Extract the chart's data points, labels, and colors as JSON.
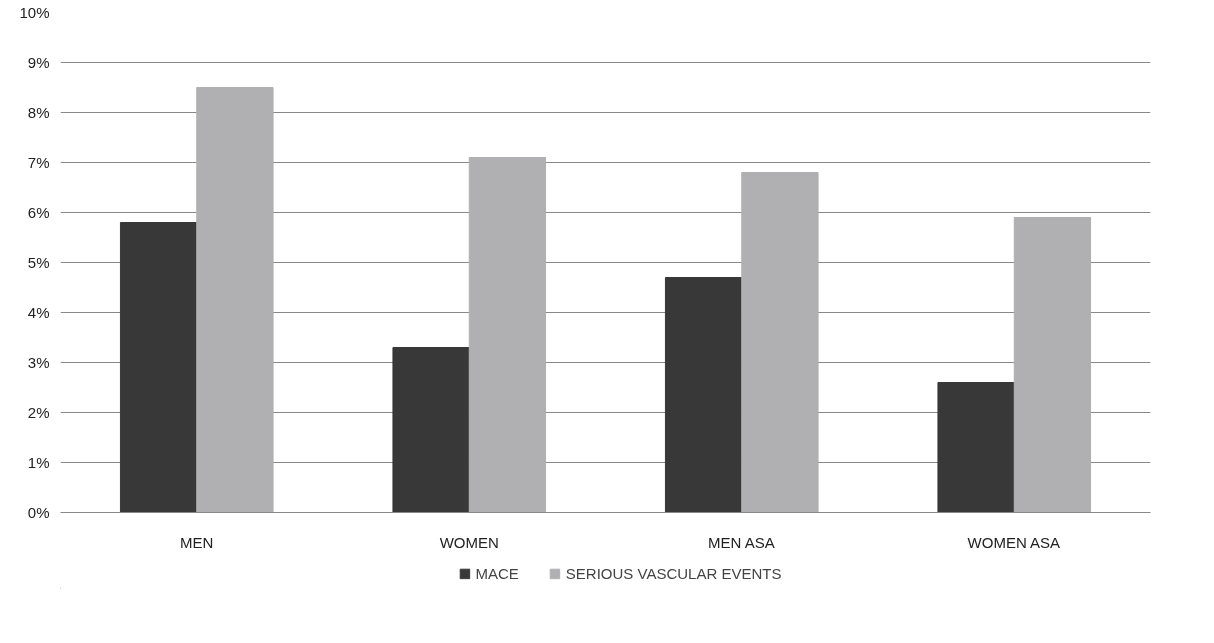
{
  "chart_data": {
    "type": "bar",
    "categories": [
      "MEN",
      "WOMEN",
      "MEN ASA",
      "WOMEN ASA"
    ],
    "series": [
      {
        "name": "MACE",
        "color": "#383838",
        "values": [
          5.8,
          3.3,
          4.7,
          2.6
        ]
      },
      {
        "name": "SERIOUS VASCULAR EVENTS",
        "color": "#b0b0b2",
        "values": [
          8.5,
          7.1,
          6.8,
          5.9
        ]
      }
    ],
    "ylim": [
      0,
      10
    ],
    "yticks": [
      {
        "value": 0,
        "label": "0%"
      },
      {
        "value": 1,
        "label": "1%"
      },
      {
        "value": 2,
        "label": "2%"
      },
      {
        "value": 3,
        "label": "3%"
      },
      {
        "value": 4,
        "label": "4%"
      },
      {
        "value": 5,
        "label": "5%"
      },
      {
        "value": 6,
        "label": "6%"
      },
      {
        "value": 7,
        "label": "7%"
      },
      {
        "value": 8,
        "label": "8%"
      },
      {
        "value": 9,
        "label": "9%"
      },
      {
        "value": 10,
        "label": "10%"
      }
    ],
    "grid": "y",
    "legend": "bottom"
  }
}
